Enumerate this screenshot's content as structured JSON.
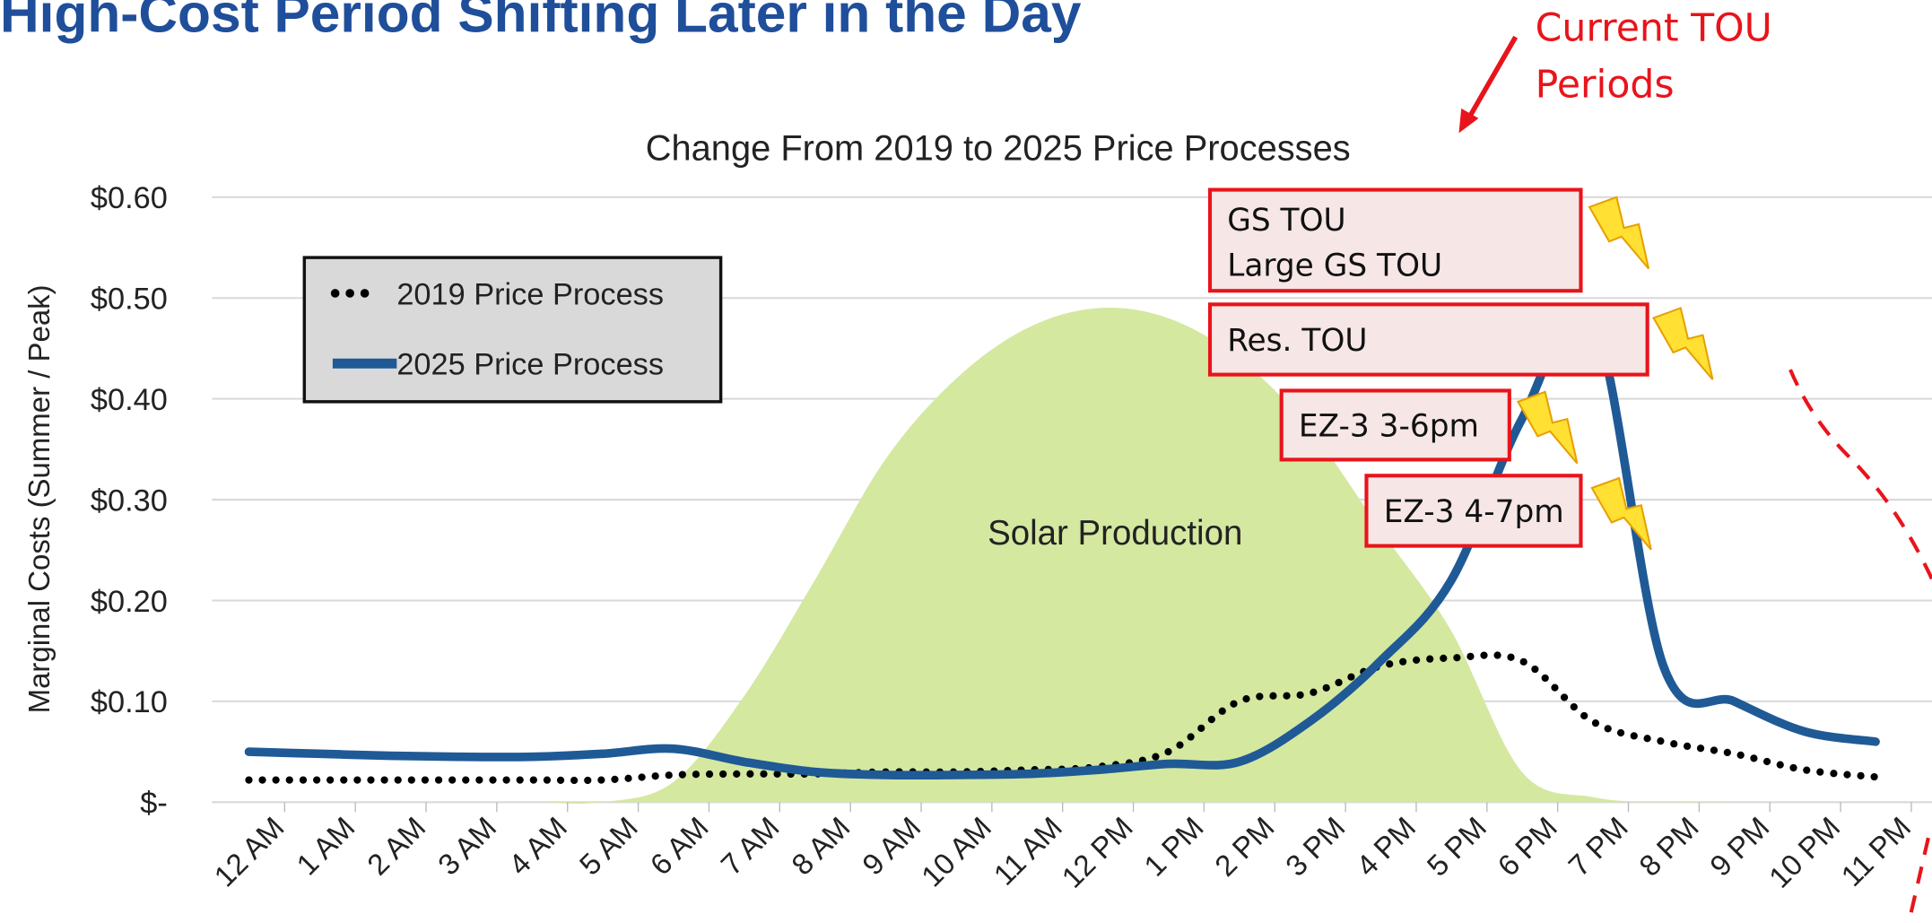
{
  "chart_data": {
    "type": "line",
    "page_title": "High-Cost Period Shifting Later in the Day",
    "title": "Change From 2019 to 2025 Price Processes",
    "y_label": "Marginal Costs (Summer / Peak)",
    "categories": [
      "12 AM",
      "1 AM",
      "2 AM",
      "3 AM",
      "4 AM",
      "5 AM",
      "6 AM",
      "7 AM",
      "8 AM",
      "9 AM",
      "10 AM",
      "11 AM",
      "12 PM",
      "1 PM",
      "2 PM",
      "3 PM",
      "4 PM",
      "5 PM",
      "6 PM",
      "7 PM",
      "8 PM",
      "9 PM",
      "10 PM",
      "11 PM"
    ],
    "series": [
      {
        "name": "2019 Price Process",
        "color": "#000000",
        "style": "dotted",
        "values": [
          0.022,
          0.022,
          0.022,
          0.022,
          0.022,
          0.022,
          0.027,
          0.028,
          0.028,
          0.03,
          0.03,
          0.032,
          0.035,
          0.05,
          0.1,
          0.108,
          0.135,
          0.143,
          0.14,
          0.08,
          0.06,
          0.048,
          0.032,
          0.025
        ]
      },
      {
        "name": "2025 Price Process",
        "color": "#1f5a96",
        "style": "solid",
        "values": [
          0.05,
          0.048,
          0.046,
          0.045,
          0.045,
          0.048,
          0.053,
          0.04,
          0.03,
          0.027,
          0.027,
          0.028,
          0.032,
          0.038,
          0.04,
          0.08,
          0.14,
          0.22,
          0.38,
          0.48,
          0.135,
          0.1,
          0.07,
          0.06
        ]
      },
      {
        "name": "Solar Production",
        "color": "#d4e8a0",
        "style": "area",
        "values": [
          0,
          0,
          0,
          0,
          0,
          0,
          0.02,
          0.105,
          0.22,
          0.34,
          0.42,
          0.47,
          0.49,
          0.48,
          0.44,
          0.37,
          0.27,
          0.17,
          0.03,
          0.005,
          0,
          0,
          0,
          0
        ]
      }
    ],
    "ylim": [
      0,
      0.6
    ],
    "yticks": [
      {
        "value": 0,
        "label": "$-"
      },
      {
        "value": 0.1,
        "label": "$0.10"
      },
      {
        "value": 0.2,
        "label": "$0.20"
      },
      {
        "value": 0.3,
        "label": "$0.30"
      },
      {
        "value": 0.4,
        "label": "$0.40"
      },
      {
        "value": 0.5,
        "label": "$0.50"
      },
      {
        "value": 0.6,
        "label": "$0.60"
      }
    ],
    "grid": true,
    "legend": "upper left",
    "tou_boxes": [
      [
        "GS TOU",
        "Large GS TOU"
      ],
      [
        "Res. TOU"
      ],
      [
        "EZ-3 3-6pm"
      ],
      [
        "EZ-3 4-7pm"
      ]
    ],
    "callout": [
      "Current TOU",
      "Periods"
    ]
  }
}
